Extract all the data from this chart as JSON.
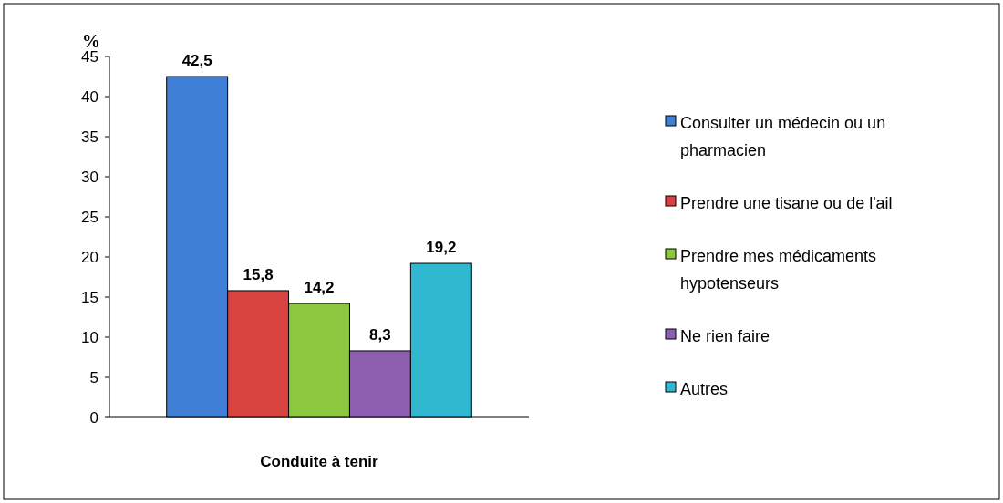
{
  "chart_data": {
    "type": "bar",
    "xlabel": "Conduite à tenir",
    "ylabel": "%",
    "categories": [
      null
    ],
    "series": [
      {
        "name": "Consulter un médecin ou un pharmacien",
        "color": "#3f7fd6",
        "values": [
          42.5
        ],
        "value_labels": [
          "42,5"
        ]
      },
      {
        "name": "Prendre une tisane ou de l'ail",
        "color": "#d9433f",
        "values": [
          15.8
        ],
        "value_labels": [
          "15,8"
        ]
      },
      {
        "name": "Prendre mes médicaments hypotenseurs",
        "color": "#8dc63f",
        "values": [
          14.2
        ],
        "value_labels": [
          "14,2"
        ]
      },
      {
        "name": "Ne rien faire",
        "color": "#8e5fb0",
        "values": [
          8.3
        ],
        "value_labels": [
          "8,3"
        ]
      },
      {
        "name": "Autres",
        "color": "#2fb8cf",
        "values": [
          19.2
        ],
        "value_labels": [
          "19,2"
        ]
      }
    ],
    "ylim": [
      0,
      45
    ],
    "yticks": [
      0,
      5,
      10,
      15,
      20,
      25,
      30,
      35,
      40,
      45
    ],
    "legend": "right",
    "grid": false
  }
}
